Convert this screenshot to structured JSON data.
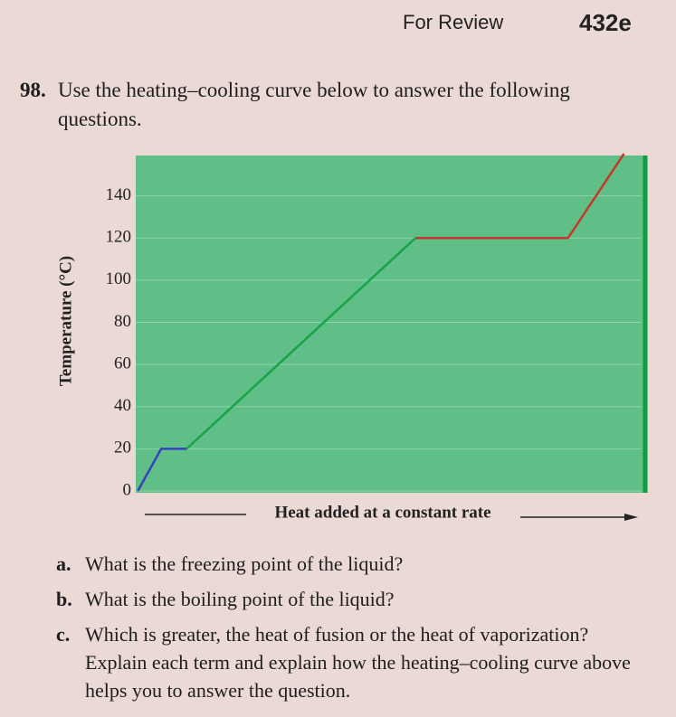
{
  "header": {
    "section": "For Review",
    "page": "432e"
  },
  "question": {
    "number": "98.",
    "text": "Use the heating–cooling curve below to answer the following questions."
  },
  "chart_data": {
    "type": "line",
    "y_label": "Temperature (°C)",
    "x_label": "Heat added at a constant rate",
    "xlim": [
      0,
      100
    ],
    "ylim": [
      0,
      160
    ],
    "yticks": [
      0,
      20,
      40,
      60,
      80,
      100,
      120,
      140
    ],
    "grid": true,
    "series": [
      {
        "color": "#3b3fc2",
        "x": [
          0.4,
          5,
          10
        ],
        "values": [
          0,
          20,
          20
        ]
      },
      {
        "color": "#17a347",
        "x": [
          10,
          55
        ],
        "values": [
          20,
          120
        ]
      },
      {
        "color": "#c23a2c",
        "x": [
          55,
          85,
          96
        ],
        "values": [
          120,
          120,
          160
        ]
      }
    ]
  },
  "parts": [
    {
      "label": "a.",
      "text": "What is the freezing point of the liquid?"
    },
    {
      "label": "b.",
      "text": "What is the boiling point of the liquid?"
    },
    {
      "label": "c.",
      "text": "Which is greater, the heat of fusion or the heat of vaporization? Explain each term and explain how the heating–cooling curve above helps you to answer the question."
    }
  ]
}
